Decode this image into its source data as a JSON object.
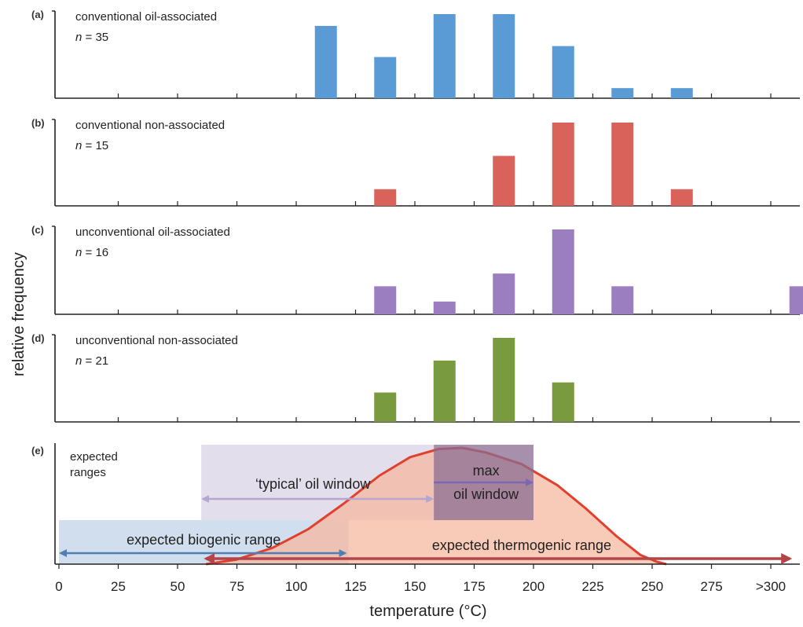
{
  "chart_data": [
    {
      "type": "bar",
      "panel": "(a)",
      "title": "conventional oil-associated",
      "n_label": "n",
      "n_value": "= 35",
      "color": "#5b9bd5",
      "categories": [
        "0",
        "25",
        "50",
        "75",
        "100",
        "125",
        "150",
        "175",
        "200",
        "225",
        "250",
        "275",
        ">300"
      ],
      "bars": [
        {
          "x": 112.5,
          "value": 0.86
        },
        {
          "x": 137.5,
          "value": 0.49
        },
        {
          "x": 162.5,
          "value": 1.0
        },
        {
          "x": 187.5,
          "value": 1.0
        },
        {
          "x": 212.5,
          "value": 0.62
        },
        {
          "x": 237.5,
          "value": 0.12
        },
        {
          "x": 262.5,
          "value": 0.12
        }
      ]
    },
    {
      "type": "bar",
      "panel": "(b)",
      "title": "conventional non-associated",
      "n_label": "n",
      "n_value": "= 15",
      "color": "#d9635b",
      "categories": [
        "0",
        "25",
        "50",
        "75",
        "100",
        "125",
        "150",
        "175",
        "200",
        "225",
        "250",
        "275",
        ">300"
      ],
      "bars": [
        {
          "x": 137.5,
          "value": 0.2
        },
        {
          "x": 187.5,
          "value": 0.6
        },
        {
          "x": 212.5,
          "value": 1.0
        },
        {
          "x": 237.5,
          "value": 1.0
        },
        {
          "x": 262.5,
          "value": 0.2
        }
      ]
    },
    {
      "type": "bar",
      "panel": "(c)",
      "title": "unconventional oil-associated",
      "n_label": "n",
      "n_value": "= 16",
      "color": "#9b7ec0",
      "categories": [
        "0",
        "25",
        "50",
        "75",
        "100",
        "125",
        "150",
        "175",
        "200",
        "225",
        "250",
        "275",
        ">300"
      ],
      "bars": [
        {
          "x": 137.5,
          "value": 0.33
        },
        {
          "x": 162.5,
          "value": 0.15
        },
        {
          "x": 187.5,
          "value": 0.48
        },
        {
          "x": 212.5,
          "value": 1.0
        },
        {
          "x": 237.5,
          "value": 0.33
        },
        {
          "x": 312.5,
          "value": 0.33
        }
      ]
    },
    {
      "type": "bar",
      "panel": "(d)",
      "title": "unconventional non-associated",
      "n_label": "n",
      "n_value": "= 21",
      "color": "#7a9a3f",
      "categories": [
        "0",
        "25",
        "50",
        "75",
        "100",
        "125",
        "150",
        "175",
        "200",
        "225",
        "250",
        "275",
        ">300"
      ],
      "bars": [
        {
          "x": 137.5,
          "value": 0.35
        },
        {
          "x": 162.5,
          "value": 0.73
        },
        {
          "x": 187.5,
          "value": 1.0
        },
        {
          "x": 212.5,
          "value": 0.47
        }
      ]
    },
    {
      "type": "area",
      "panel": "(e)",
      "title_lines": [
        "expected",
        "ranges"
      ],
      "ranges": [
        {
          "label": "expected biogenic range",
          "from": 0,
          "to": 122,
          "color": "#c9d8ea",
          "arrow_color": "#4f7fb3"
        },
        {
          "label": "‘typical’ oil window",
          "from": 60,
          "to": 158,
          "color": "#ddd8e8",
          "arrow_color": "#b5a6d0"
        },
        {
          "label_lines": [
            "max",
            "oil window"
          ],
          "from": 158,
          "to": 200,
          "color": "#8a6b90",
          "arrow_color": "#7a68b0"
        },
        {
          "label": "expected thermogenic range",
          "from": 62,
          "to": 310,
          "color": "#f6b8a0",
          "arrow_color": "#b5444a"
        }
      ],
      "curve": {
        "color": "#e2402e",
        "points": [
          [
            62,
            0
          ],
          [
            75,
            0.04
          ],
          [
            90,
            0.14
          ],
          [
            105,
            0.3
          ],
          [
            120,
            0.52
          ],
          [
            135,
            0.76
          ],
          [
            148,
            0.92
          ],
          [
            160,
            0.99
          ],
          [
            170,
            1.0
          ],
          [
            180,
            0.96
          ],
          [
            195,
            0.86
          ],
          [
            210,
            0.68
          ],
          [
            222,
            0.48
          ],
          [
            235,
            0.24
          ],
          [
            245,
            0.08
          ],
          [
            252,
            0.02
          ],
          [
            256,
            0
          ]
        ]
      },
      "xlabel": "temperature (°C)",
      "xticks": [
        "0",
        "25",
        "50",
        "75",
        "100",
        "125",
        "150",
        "175",
        "200",
        "225",
        "250",
        "275",
        ">300"
      ]
    }
  ],
  "ylabel": "relative frequency"
}
